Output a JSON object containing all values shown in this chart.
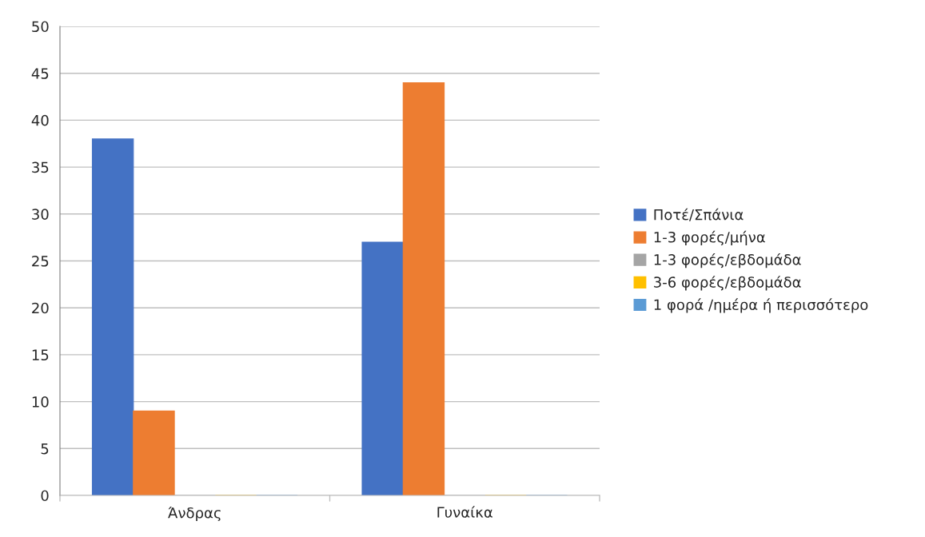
{
  "chart_data": {
    "type": "bar",
    "categories": [
      "Άνδρας",
      "Γυναίκα"
    ],
    "series": [
      {
        "name": "Ποτέ/Σπάνια",
        "color": "#4472c4",
        "values": [
          38,
          27
        ]
      },
      {
        "name": "1-3 φορές/μήνα",
        "color": "#ed7d31",
        "values": [
          9,
          44
        ]
      },
      {
        "name": "1-3 φορές/εβδομάδα",
        "color": "#a5a5a5",
        "values": [
          0,
          0
        ]
      },
      {
        "name": "3-6 φορές/εβδομάδα",
        "color": "#ffc000",
        "values": [
          0,
          0
        ]
      },
      {
        "name": "1 φορά /ημέρα ή περισσότερο",
        "color": "#5b9bd5",
        "values": [
          0,
          0
        ]
      }
    ],
    "ylim": [
      0,
      50
    ],
    "yticks": [
      0,
      5,
      10,
      15,
      20,
      25,
      30,
      35,
      40,
      45,
      50
    ],
    "grid": "y",
    "legend": "right"
  }
}
